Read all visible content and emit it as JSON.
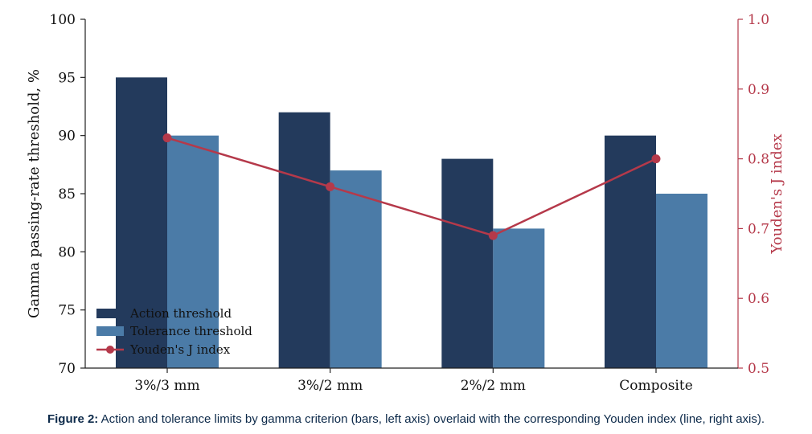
{
  "chart_data": {
    "type": "bar",
    "categories": [
      "3%/3 mm",
      "3%/2 mm",
      "2%/2 mm",
      "Composite"
    ],
    "series": [
      {
        "name": "Action threshold",
        "type": "bar",
        "axis": "left",
        "values": [
          95,
          92,
          88,
          90
        ],
        "color": "#233a5c"
      },
      {
        "name": "Tolerance threshold",
        "type": "bar",
        "axis": "left",
        "values": [
          90,
          87,
          82,
          85
        ],
        "color": "#4b7ba7"
      },
      {
        "name": "Youden's J index",
        "type": "line",
        "axis": "right",
        "values": [
          0.83,
          0.76,
          0.69,
          0.8
        ],
        "color": "#b5394a"
      }
    ],
    "ylabel": "Gamma passing-rate threshold, %",
    "ylim": [
      70,
      100
    ],
    "yticks": [
      "70",
      "75",
      "80",
      "85",
      "90",
      "95",
      "100"
    ],
    "y2label": "Youden's J index",
    "y2lim": [
      0.5,
      1.0
    ],
    "y2ticks": [
      "0.5",
      "0.6",
      "0.7",
      "0.8",
      "0.9",
      "1.0"
    ],
    "y2_color": "#b5394a",
    "legend_position": "bottom-left",
    "grid": false
  },
  "caption": {
    "label": "Figure 2:",
    "text": " Action and tolerance limits by gamma criterion (bars, left axis) overlaid with the corresponding Youden index (line, right axis)."
  }
}
